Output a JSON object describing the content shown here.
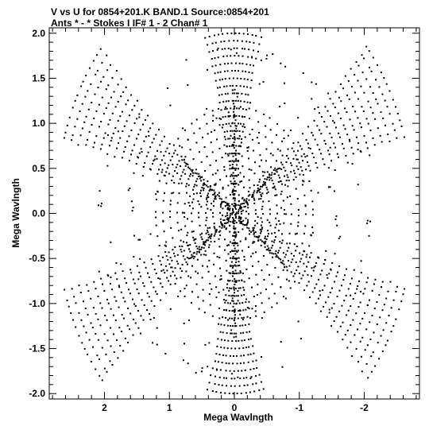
{
  "chart_data": {
    "type": "scatter",
    "title_line1": "V vs U for 0854+201.K BAND.1   Source:0854+201",
    "title_line2": "Ants * - *    Stokes I  IF# 1 - 2  Chan# 1",
    "xlabel": "Mega Wavlngth",
    "ylabel": "Mega Wavlngth",
    "xlim": [
      2.85,
      -2.85
    ],
    "ylim": [
      -2.06,
      2.06
    ],
    "x_ticks": [
      2,
      1,
      0,
      -1,
      -2
    ],
    "x_tick_labels": [
      "2",
      "1",
      "0",
      "-1",
      "-2"
    ],
    "y_ticks": [
      2.0,
      1.5,
      1.0,
      0.5,
      0.0,
      -0.5,
      -1.0,
      -1.5,
      -2.0
    ],
    "y_tick_labels": [
      "2.0",
      "1.5",
      "1.0",
      "0.5",
      "0.0",
      "-0.5",
      "-1.0",
      "-1.5",
      "-2.0"
    ],
    "minor_step_x": 0.2,
    "minor_step_y": 0.1,
    "colors": {
      "points": "#000000",
      "axes": "#000000",
      "background": "#ffffff"
    },
    "uv_coverage": {
      "description_symmetry": "point-symmetric (u,v) and (-u,-v)",
      "arm_angles_deg": [
        90,
        30,
        -30
      ],
      "arm_max_radius": [
        2.0,
        2.75,
        2.75
      ],
      "arm_spread_deg": 26,
      "rings_count": 24,
      "dense_core_radius": 0.22
    }
  }
}
